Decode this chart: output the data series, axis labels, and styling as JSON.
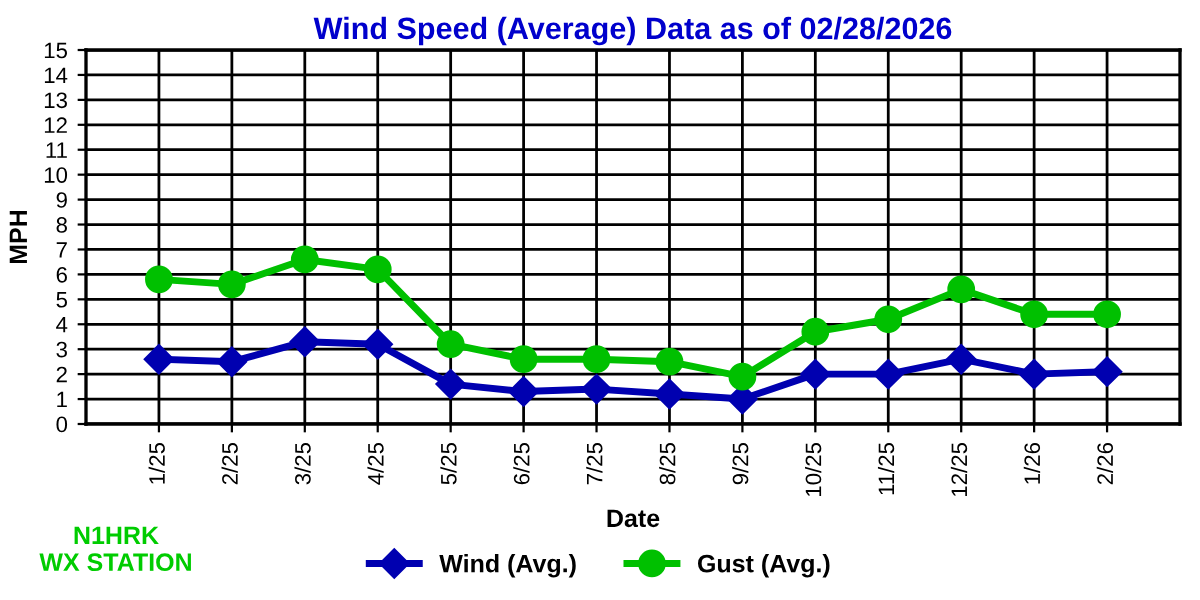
{
  "chart_data": {
    "type": "line",
    "title": "Wind Speed (Average) Data as of 02/28/2026",
    "xlabel": "Date",
    "ylabel": "MPH",
    "categories": [
      "1/25",
      "2/25",
      "3/25",
      "4/25",
      "5/25",
      "6/25",
      "7/25",
      "8/25",
      "9/25",
      "10/25",
      "11/25",
      "12/25",
      "1/26",
      "2/26"
    ],
    "series": [
      {
        "name": "Wind (Avg.)",
        "color": "#0000b0",
        "marker": "diamond",
        "values": [
          2.6,
          2.5,
          3.3,
          3.2,
          1.6,
          1.3,
          1.4,
          1.2,
          1.0,
          2.0,
          2.0,
          2.6,
          2.0,
          2.1
        ]
      },
      {
        "name": "Gust (Avg.)",
        "color": "#00c000",
        "marker": "circle",
        "values": [
          5.8,
          5.6,
          6.6,
          6.2,
          3.2,
          2.6,
          2.6,
          2.5,
          1.9,
          3.7,
          4.2,
          5.4,
          4.4,
          4.4
        ]
      }
    ],
    "ylim": [
      0,
      15
    ],
    "yticks": [
      0,
      1,
      2,
      3,
      4,
      5,
      6,
      7,
      8,
      9,
      10,
      11,
      12,
      13,
      14,
      15
    ],
    "grid": true,
    "legend": "bottom",
    "line_style": "solid",
    "annotations": [
      "N1HRK\nWX STATION"
    ]
  }
}
